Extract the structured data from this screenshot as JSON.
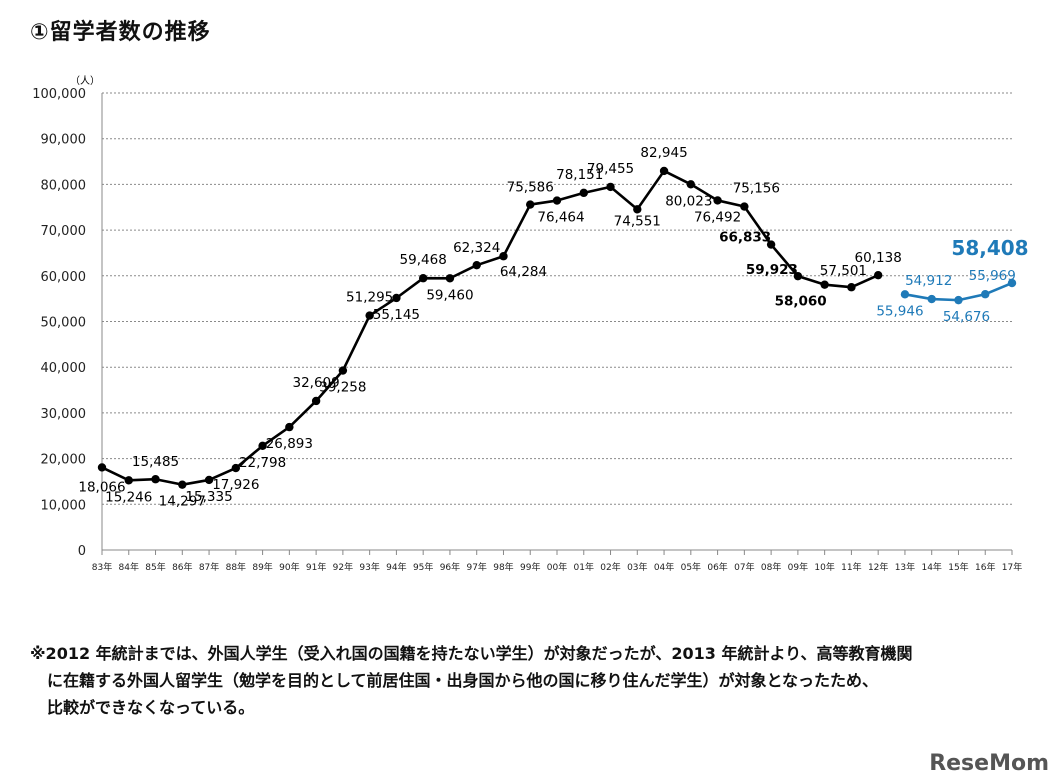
{
  "title": "①留学者数の推移",
  "chart_data": {
    "type": "line",
    "ylabel": "（人）",
    "ylim": [
      0,
      100000
    ],
    "yticks": [
      0,
      10000,
      20000,
      30000,
      40000,
      50000,
      60000,
      70000,
      80000,
      90000,
      100000
    ],
    "ytick_labels": [
      "0",
      "10,000",
      "20,000",
      "30,000",
      "40,000",
      "50,000",
      "60,000",
      "70,000",
      "80,000",
      "90,000",
      "100,000"
    ],
    "categories": [
      "83年",
      "84年",
      "85年",
      "86年",
      "87年",
      "88年",
      "89年",
      "90年",
      "91年",
      "92年",
      "93年",
      "94年",
      "95年",
      "96年",
      "97年",
      "98年",
      "99年",
      "00年",
      "01年",
      "02年",
      "03年",
      "04年",
      "05年",
      "06年",
      "07年",
      "08年",
      "09年",
      "10年",
      "11年",
      "12年",
      "13年",
      "14年",
      "15年",
      "16年",
      "17年"
    ],
    "series": [
      {
        "name": "2012年統計まで",
        "color": "#000000",
        "values": [
          18066,
          15246,
          15485,
          14297,
          15335,
          17926,
          22798,
          26893,
          32609,
          39258,
          51295,
          55145,
          59468,
          59460,
          62324,
          64284,
          75586,
          76464,
          78151,
          79455,
          74551,
          82945,
          80023,
          76492,
          75156,
          66833,
          59923,
          58060,
          57501,
          60138,
          null,
          null,
          null,
          null,
          null
        ],
        "labels": [
          "18,066",
          "15,246",
          "15,485",
          "14,297",
          "15,335",
          "17,926",
          "22,798",
          "26,893",
          "32,609",
          "39,258",
          "51,295",
          "55,145",
          "59,468",
          "59,460",
          "62,324",
          "64,284",
          "75,586",
          "76,464",
          "78,151",
          "79,455",
          "74,551",
          "82,945",
          "80,023",
          "76,492",
          "75,156",
          "66,833",
          "59,923",
          "58,060",
          "57,501",
          "60,138",
          null,
          null,
          null,
          null,
          null
        ]
      },
      {
        "name": "2013年統計より",
        "color": "#1f7ab8",
        "values": [
          null,
          null,
          null,
          null,
          null,
          null,
          null,
          null,
          null,
          null,
          null,
          null,
          null,
          null,
          null,
          null,
          null,
          null,
          null,
          null,
          null,
          null,
          null,
          null,
          null,
          null,
          null,
          null,
          null,
          null,
          55946,
          54912,
          54676,
          55969,
          58408
        ],
        "labels": [
          null,
          null,
          null,
          null,
          null,
          null,
          null,
          null,
          null,
          null,
          null,
          null,
          null,
          null,
          null,
          null,
          null,
          null,
          null,
          null,
          null,
          null,
          null,
          null,
          null,
          null,
          null,
          null,
          null,
          null,
          "55,946",
          "54,912",
          "54,676",
          "55,969",
          "58,408"
        ]
      }
    ]
  },
  "note": {
    "line1": "※2012 年統計までは、外国人学生（受入れ国の国籍を持たない学生）が対象だったが、2013 年統計より、高等教育機関",
    "line2": "に在籍する外国人留学生（勉学を目的として前居住国・出身国から他の国に移り住んだ学生）が対象となったため、",
    "line3": "比較ができなくなっている。"
  },
  "logo": "ReseMom"
}
